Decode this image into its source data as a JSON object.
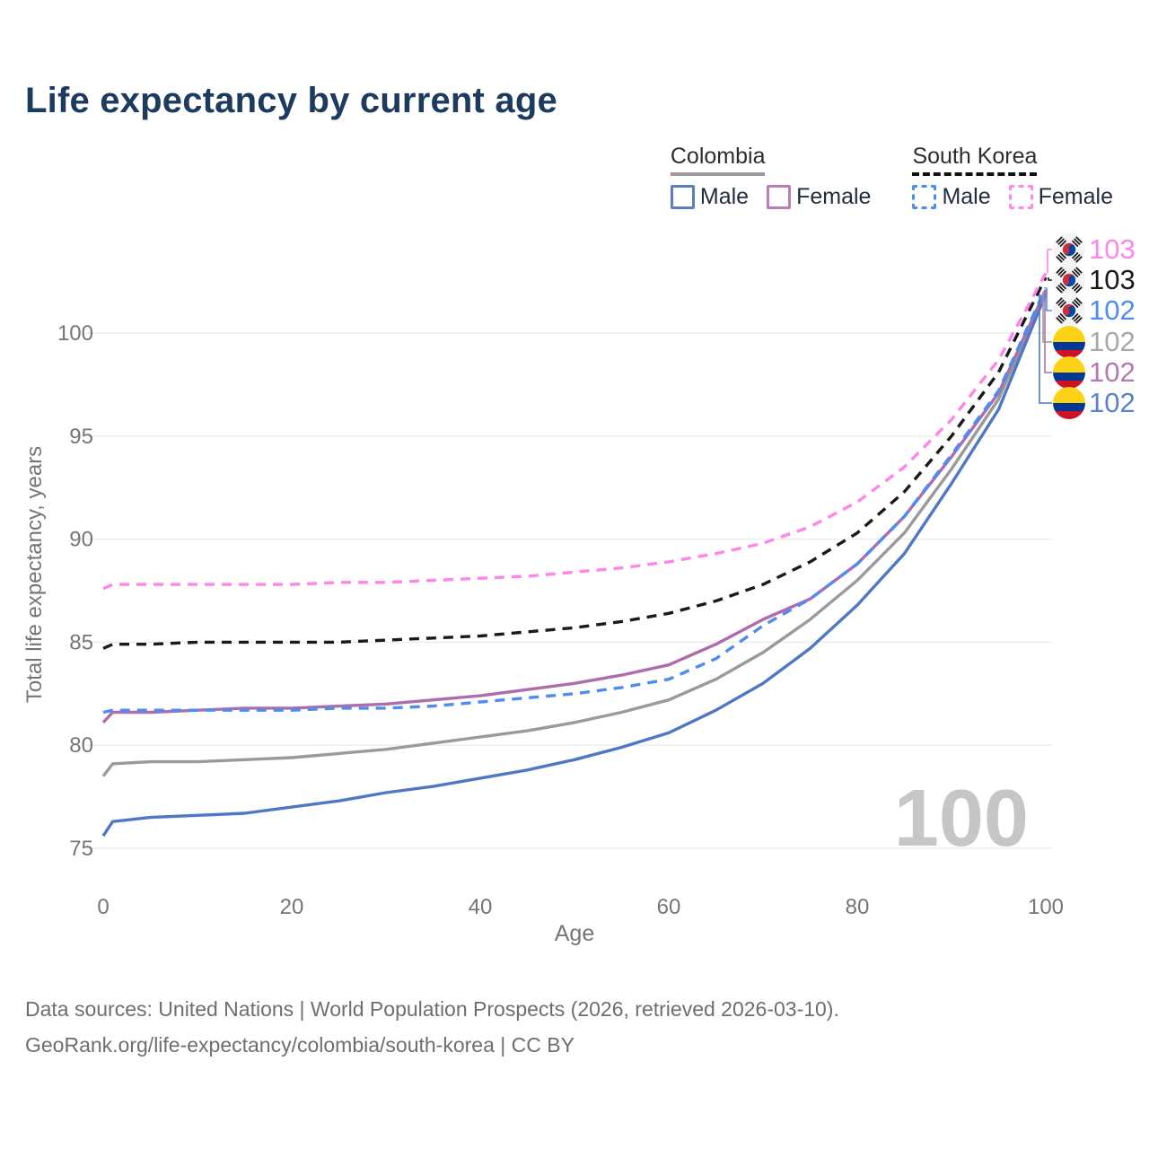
{
  "title": "Life expectancy by current age",
  "legend": {
    "groups": [
      {
        "name": "Colombia",
        "underline": "solid",
        "underline_color": "#9a9a9a",
        "items": [
          {
            "label": "Male",
            "color": "#5b7fbd",
            "dash": false
          },
          {
            "label": "Female",
            "color": "#b87fb5",
            "dash": false
          }
        ]
      },
      {
        "name": "South Korea",
        "underline": "dashed",
        "underline_color": "#111111",
        "items": [
          {
            "label": "Male",
            "color": "#4d8df0",
            "dash": true
          },
          {
            "label": "Female",
            "color": "#ff8ae4",
            "dash": true
          }
        ]
      }
    ]
  },
  "watermark": "100",
  "footer": {
    "line1": "Data sources: United Nations | World Population Prospects (2026, retrieved 2026-03-10).",
    "line2": "GeoRank.org/life-expectancy/colombia/south-korea | CC BY"
  },
  "chart_data": {
    "type": "line",
    "title": "Life expectancy by current age",
    "xlabel": "Age",
    "ylabel": "Total life expectancy, years",
    "xlim": [
      0,
      100
    ],
    "ylim": [
      75,
      103.5
    ],
    "x_ticks": [
      0,
      20,
      40,
      60,
      80,
      100
    ],
    "y_ticks": [
      75,
      80,
      85,
      90,
      95,
      100
    ],
    "grid": true,
    "legend_position": "top-right",
    "ages": [
      0,
      1,
      5,
      10,
      15,
      20,
      25,
      30,
      35,
      40,
      45,
      50,
      55,
      60,
      65,
      70,
      75,
      80,
      85,
      90,
      95,
      100
    ],
    "series": [
      {
        "id": "co_total",
        "name": "Colombia",
        "sex": "Total",
        "color": "#9a9a9a",
        "dashed": false,
        "width": 3.4,
        "values": [
          78.5,
          79.1,
          79.2,
          79.2,
          79.3,
          79.4,
          79.6,
          79.8,
          80.1,
          80.4,
          80.7,
          81.1,
          81.6,
          82.2,
          83.2,
          84.5,
          86.1,
          88.0,
          90.3,
          93.4,
          96.8,
          102.0
        ]
      },
      {
        "id": "co_male",
        "name": "Colombia Male",
        "sex": "Male",
        "color": "#4f78c4",
        "dashed": false,
        "width": 3.4,
        "values": [
          75.6,
          76.3,
          76.5,
          76.6,
          76.7,
          77.0,
          77.3,
          77.7,
          78.0,
          78.4,
          78.8,
          79.3,
          79.9,
          80.6,
          81.7,
          83.0,
          84.7,
          86.8,
          89.3,
          92.7,
          96.3,
          101.9
        ]
      },
      {
        "id": "co_female",
        "name": "Colombia Female",
        "sex": "Female",
        "color": "#ad6dad",
        "dashed": false,
        "width": 3.4,
        "values": [
          81.1,
          81.6,
          81.6,
          81.7,
          81.8,
          81.8,
          81.9,
          82.0,
          82.2,
          82.4,
          82.7,
          83.0,
          83.4,
          83.9,
          84.9,
          86.1,
          87.1,
          88.8,
          91.1,
          94.0,
          97.1,
          102.1
        ]
      },
      {
        "id": "sk_total",
        "name": "South Korea",
        "sex": "Total",
        "color": "#1a1a1a",
        "dashed": true,
        "width": 3.4,
        "values": [
          84.7,
          84.9,
          84.9,
          85.0,
          85.0,
          85.0,
          85.0,
          85.1,
          85.2,
          85.3,
          85.5,
          85.7,
          86.0,
          86.4,
          87.0,
          87.8,
          88.9,
          90.3,
          92.3,
          95.0,
          98.1,
          102.7
        ]
      },
      {
        "id": "sk_female",
        "name": "South Korea Female",
        "sex": "Female",
        "color": "#ff85e6",
        "dashed": true,
        "width": 3.4,
        "values": [
          87.6,
          87.8,
          87.8,
          87.8,
          87.8,
          87.8,
          87.9,
          87.9,
          88.0,
          88.1,
          88.2,
          88.4,
          88.6,
          88.9,
          89.3,
          89.8,
          90.6,
          91.8,
          93.5,
          95.8,
          98.7,
          102.9
        ]
      },
      {
        "id": "sk_male",
        "name": "South Korea Male",
        "sex": "Male",
        "color": "#4d8df0",
        "dashed": true,
        "width": 3.4,
        "values": [
          81.6,
          81.7,
          81.7,
          81.7,
          81.7,
          81.7,
          81.8,
          81.8,
          81.9,
          82.1,
          82.3,
          82.5,
          82.8,
          83.2,
          84.2,
          85.8,
          87.1,
          88.8,
          91.1,
          94.1,
          97.2,
          102.2
        ]
      }
    ],
    "end_labels": [
      {
        "series": "sk_female",
        "flag": "south-korea-flag",
        "text": "103",
        "color": "#ff85e6"
      },
      {
        "series": "sk_total",
        "flag": "south-korea-flag",
        "text": "103",
        "color": "#1a1a1a"
      },
      {
        "series": "sk_male",
        "flag": "south-korea-flag",
        "text": "102",
        "color": "#4d8df0"
      },
      {
        "series": "co_total",
        "flag": "colombia-flag",
        "text": "102",
        "color": "#a8a8a8"
      },
      {
        "series": "co_female",
        "flag": "colombia-flag",
        "text": "102",
        "color": "#b07ab0"
      },
      {
        "series": "co_male",
        "flag": "colombia-flag",
        "text": "102",
        "color": "#5b82c8"
      }
    ],
    "flag_colors": {
      "colombia": {
        "yellow": "#FCD116",
        "blue": "#003893",
        "red": "#CE1126"
      },
      "south_korea": {
        "bg": "#f4f4f5",
        "red": "#CD2E3A",
        "blue": "#0047A0",
        "black": "#1a1a1a"
      }
    },
    "grid_color": "#ebebeb",
    "tick_color": "#757575",
    "watermark_color": "#c6c6c6"
  }
}
